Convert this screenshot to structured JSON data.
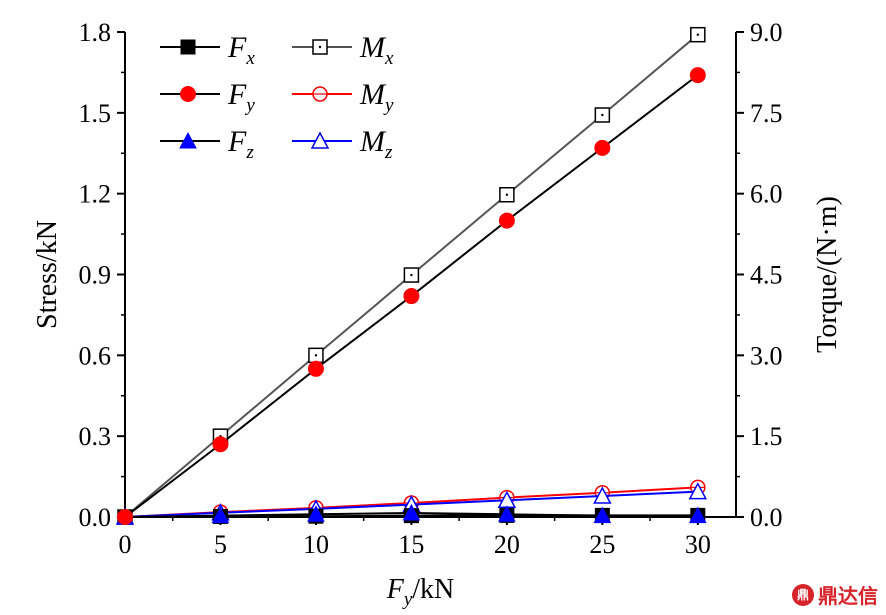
{
  "chart_data": {
    "type": "line",
    "x": [
      0,
      5,
      10,
      15,
      20,
      25,
      30
    ],
    "xlim": [
      0,
      32
    ],
    "xticks": [
      "0",
      "5",
      "10",
      "15",
      "20",
      "25",
      "30"
    ],
    "xlabel": {
      "main": "F",
      "sub": "y",
      "unit": "/kN"
    },
    "ylabel_left": "Stress/kN",
    "ylim_left": [
      0,
      1.8
    ],
    "yticks_left": [
      "0.0",
      "0.3",
      "0.6",
      "0.9",
      "1.2",
      "1.5",
      "1.8"
    ],
    "ylabel_right": "Torque/(N·m)",
    "ylim_right": [
      0,
      9.0
    ],
    "yticks_right": [
      "0.0",
      "1.5",
      "3.0",
      "4.5",
      "6.0",
      "7.5",
      "9.0"
    ],
    "grid": false,
    "legend_position": "top-left",
    "series": [
      {
        "name": "Fx",
        "main": "F",
        "sub": "x",
        "axis": "left",
        "marker": "square-filled",
        "color": "#000000",
        "line_color": "#000000",
        "values": [
          0,
          0.002,
          0.003,
          0.005,
          0.006,
          0.006,
          0.006
        ]
      },
      {
        "name": "Fy",
        "main": "F",
        "sub": "y",
        "axis": "left",
        "marker": "circle-filled",
        "color": "#ff0000",
        "line_color": "#000000",
        "values": [
          0,
          0.27,
          0.55,
          0.82,
          1.1,
          1.37,
          1.64
        ]
      },
      {
        "name": "Fz",
        "main": "F",
        "sub": "z",
        "axis": "left",
        "marker": "triangle-filled",
        "color": "#0000ff",
        "line_color": "#000000",
        "values": [
          0,
          0.005,
          0.01,
          0.015,
          0.01,
          0.005,
          0.005
        ]
      },
      {
        "name": "Mx",
        "main": "M",
        "sub": "x",
        "axis": "right",
        "marker": "square-open",
        "color": "#000000",
        "line_color": "#555555",
        "values": [
          0,
          1.5,
          3.0,
          4.49,
          5.98,
          7.46,
          8.95
        ]
      },
      {
        "name": "My",
        "main": "M",
        "sub": "y",
        "axis": "right",
        "marker": "circle-open",
        "color": "#ff0000",
        "line_color": "#ff0000",
        "values": [
          0,
          0.09,
          0.17,
          0.26,
          0.36,
          0.45,
          0.55
        ]
      },
      {
        "name": "Mz",
        "main": "M",
        "sub": "z",
        "axis": "right",
        "marker": "triangle-open",
        "color": "#0000ff",
        "line_color": "#0000ff",
        "values": [
          0,
          0.08,
          0.15,
          0.23,
          0.31,
          0.39,
          0.47
        ]
      }
    ]
  },
  "watermark": {
    "text": "鼎达信",
    "logo": "鼎"
  }
}
